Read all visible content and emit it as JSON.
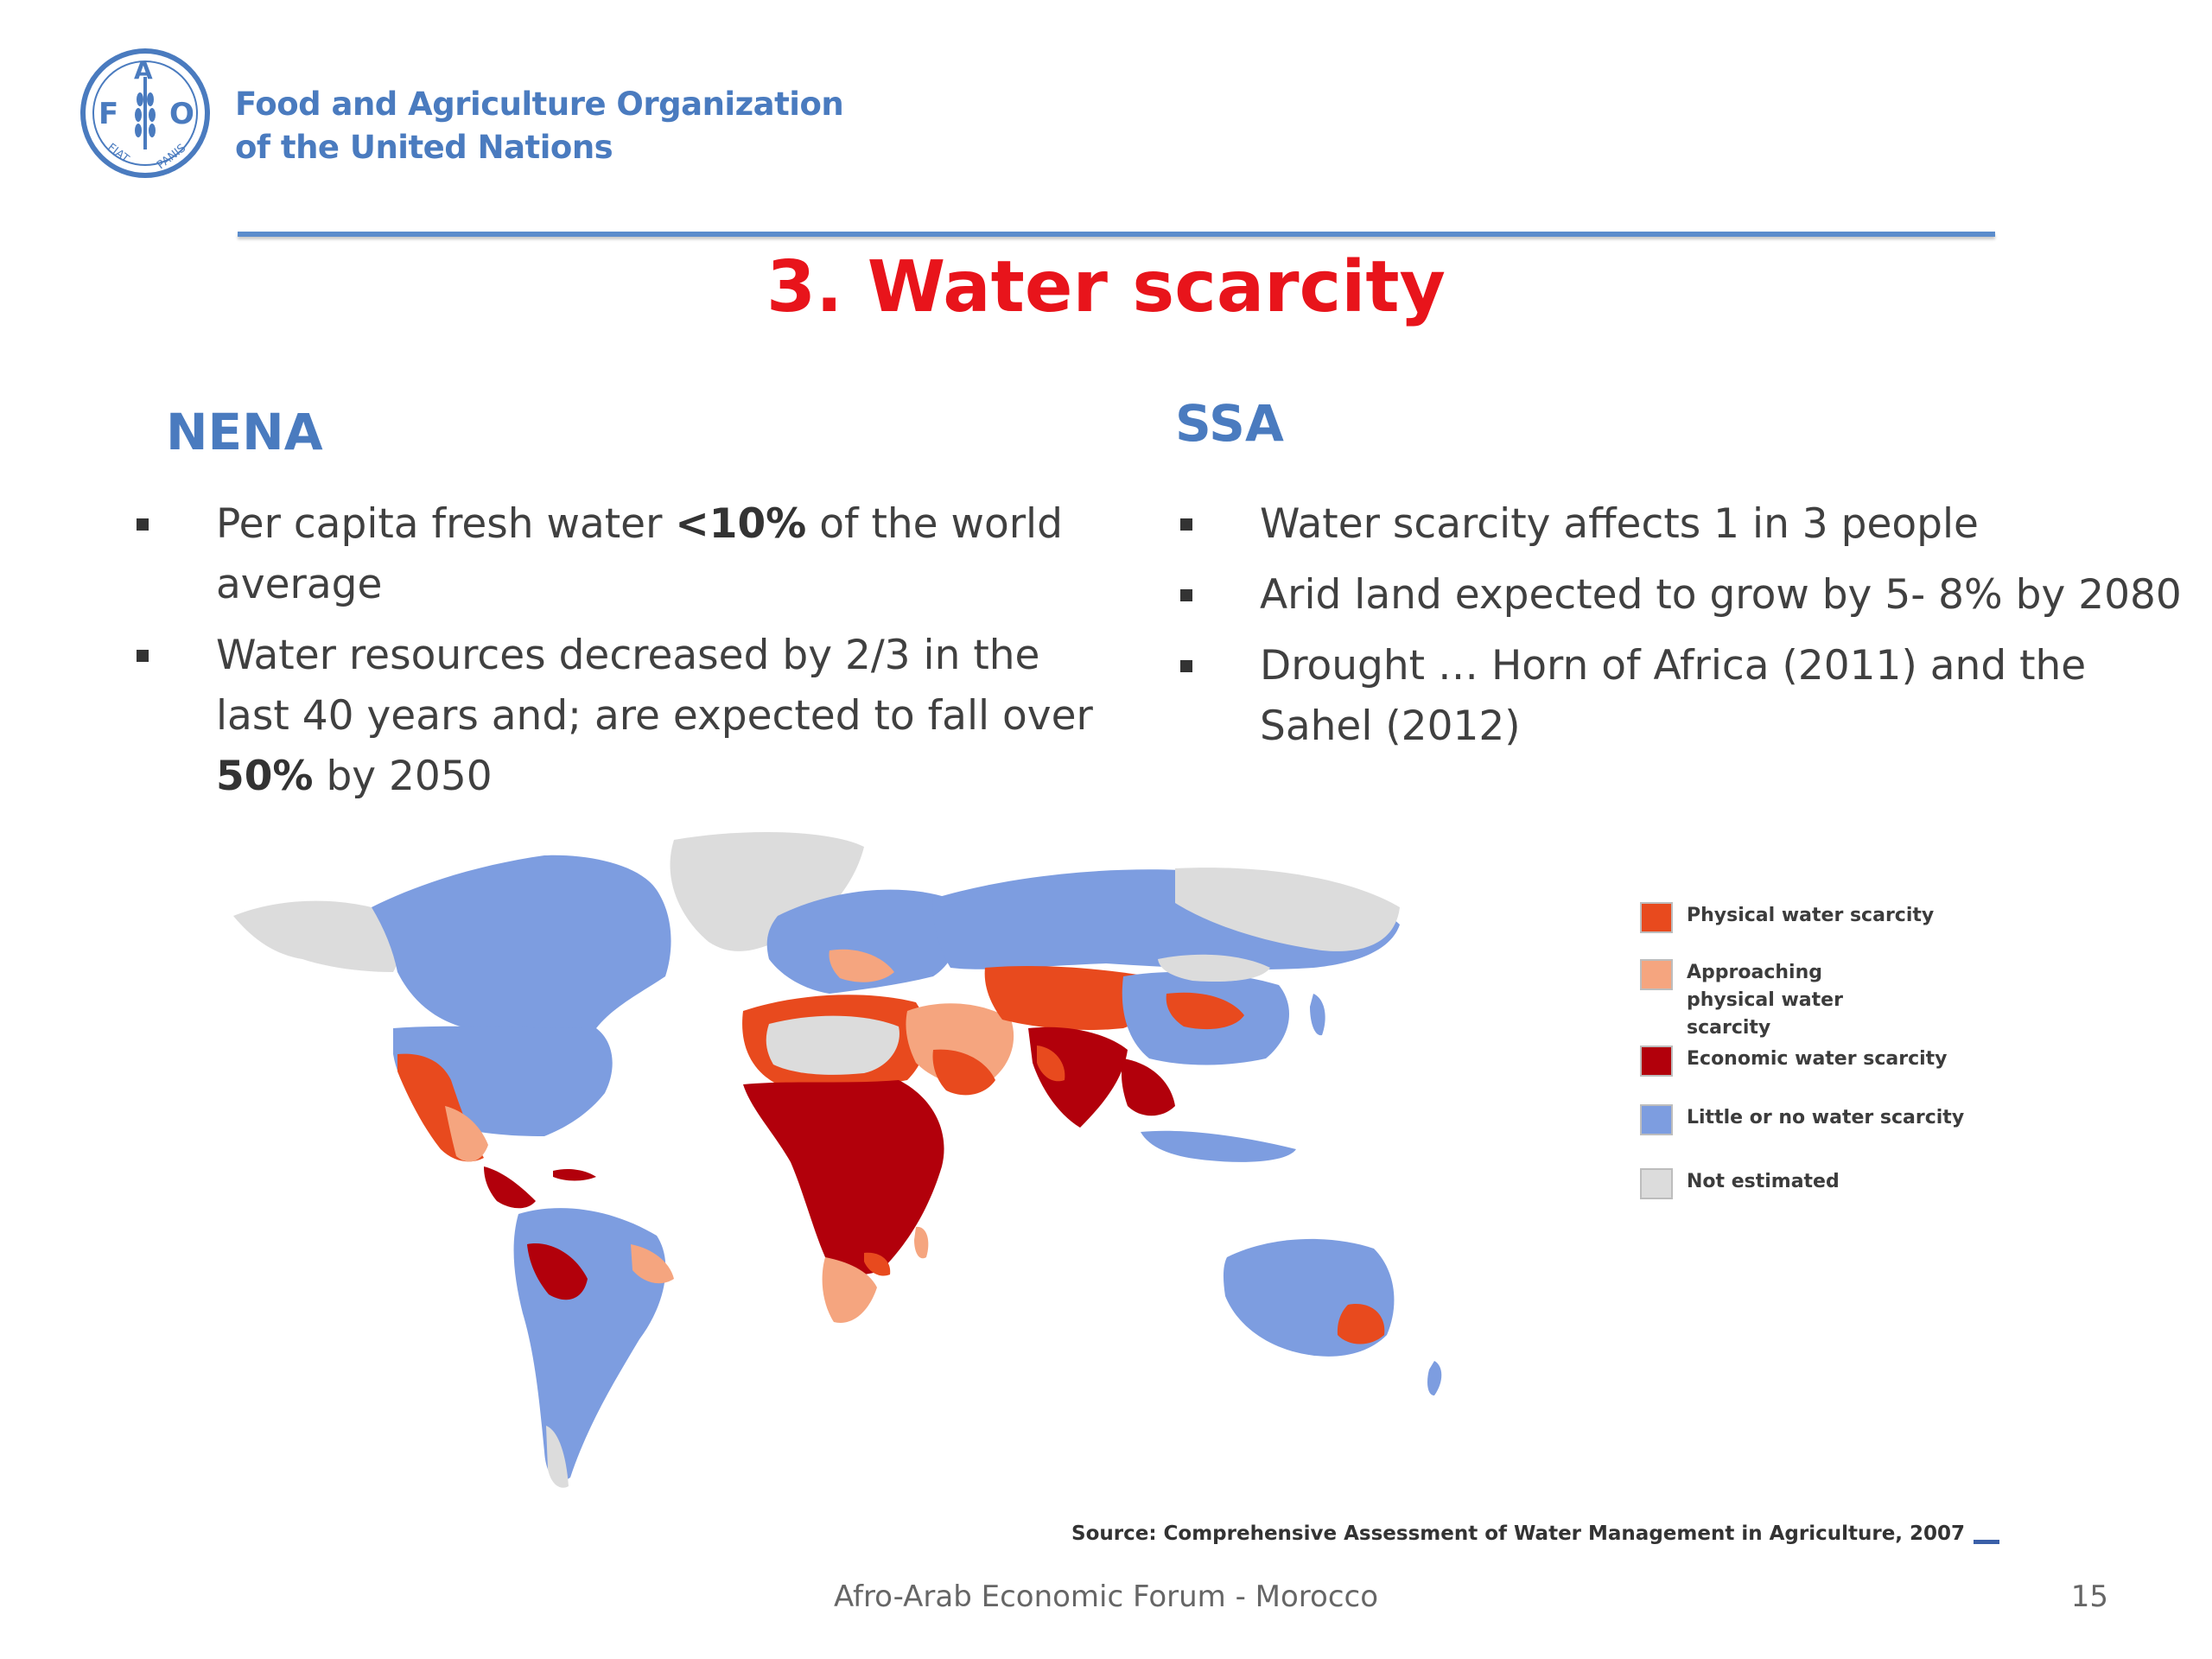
{
  "header": {
    "logo_icon": "fao-emblem-icon",
    "logo_letters": {
      "f": "F",
      "a": "A",
      "o": "O"
    },
    "logo_motto": {
      "left": "FIAT",
      "right": "PANIS"
    },
    "org_line1": "Food and Agriculture Organization",
    "org_line2": "of the United Nations"
  },
  "colors": {
    "brand_blue": "#4a7bbf",
    "title_red": "#e8141b",
    "physical": "#e84a1e",
    "approaching": "#f5a57f",
    "economic": "#b2000b",
    "little": "#7d9de0",
    "not_estimated": "#dcdcdc"
  },
  "slide": {
    "title": "3. Water scarcity"
  },
  "nena": {
    "heading": "NENA",
    "b1_pre": "Per capita fresh water ",
    "b1_bold": "<10%",
    "b1_post": " of the world average",
    "b2_pre": "Water resources decreased by 2/3 in the last 40 years and; are expected to fall over ",
    "b2_bold": "50%",
    "b2_post": " by 2050"
  },
  "ssa": {
    "heading": "SSA",
    "bullets": [
      "Water scarcity affects 1 in 3 people",
      "Arid land expected to grow by 5- 8% by 2080",
      "Drought … Horn of Africa (2011) and the Sahel (2012)"
    ]
  },
  "legend": {
    "items": [
      {
        "label": "Physical water scarcity"
      },
      {
        "label": "Approaching physical water scarcity"
      },
      {
        "label": "Economic water scarcity"
      },
      {
        "label": "Little or no water scarcity"
      },
      {
        "label": "Not estimated"
      }
    ]
  },
  "source": "Source: Comprehensive Assessment of Water Management in Agriculture, 2007",
  "footer": {
    "text": "Afro-Arab Economic Forum - Morocco",
    "page": "15"
  }
}
